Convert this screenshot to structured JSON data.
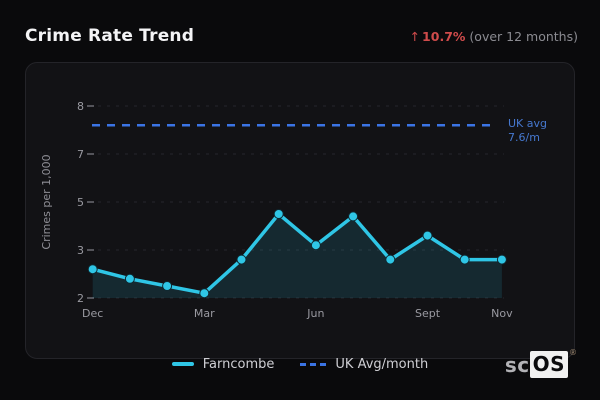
{
  "header": {
    "title": "Crime Rate Trend",
    "stat": {
      "arrow": "↑",
      "value": "10.7%",
      "caption": "(over 12 months)"
    }
  },
  "chart_data": {
    "type": "line",
    "title": "Crime Rate Trend",
    "ylabel": "Crimes per 1,000",
    "y_axis": {
      "ticks_bottom_to_top": [
        2,
        3,
        5,
        7,
        8
      ],
      "ylim": [
        2,
        8
      ],
      "grid": "dashed"
    },
    "x_tick_labels": [
      {
        "index": 0,
        "label": "Dec"
      },
      {
        "index": 3,
        "label": "Mar"
      },
      {
        "index": 6,
        "label": "Jun"
      },
      {
        "index": 9,
        "label": "Sept"
      },
      {
        "index": 11,
        "label": "Nov"
      }
    ],
    "series": [
      {
        "name": "Farncombe",
        "kind": "line-area-markers",
        "color": "#2fc6e6",
        "values": [
          2.6,
          2.4,
          2.25,
          2.1,
          2.8,
          4.5,
          3.2,
          4.4,
          2.8,
          3.6,
          2.8,
          2.8
        ]
      },
      {
        "name": "UK Avg/month",
        "kind": "dashed-reference-line",
        "color": "#3b74e4",
        "value": 7.6,
        "label_lines": [
          "UK avg",
          "7.6/m"
        ],
        "label_color": "#4678cf"
      }
    ],
    "legend": [
      {
        "label": "Farncombe",
        "swatch": "solid"
      },
      {
        "label": "UK Avg/month",
        "swatch": "dashed"
      }
    ],
    "legend_position": "bottom-center"
  },
  "colors": {
    "accent_cyan": "#2fc6e6",
    "accent_blue": "#3b74e4",
    "negative_red": "#cf4b4b",
    "grid": "#27272d",
    "tick_text": "#9a9aa1",
    "axis_text": "#8f8f96",
    "panel_bg": "#121215",
    "page_bg": "#0a0a0c"
  },
  "branding": {
    "sc": "sc",
    "os": "OS",
    "registered_mark": "®"
  }
}
